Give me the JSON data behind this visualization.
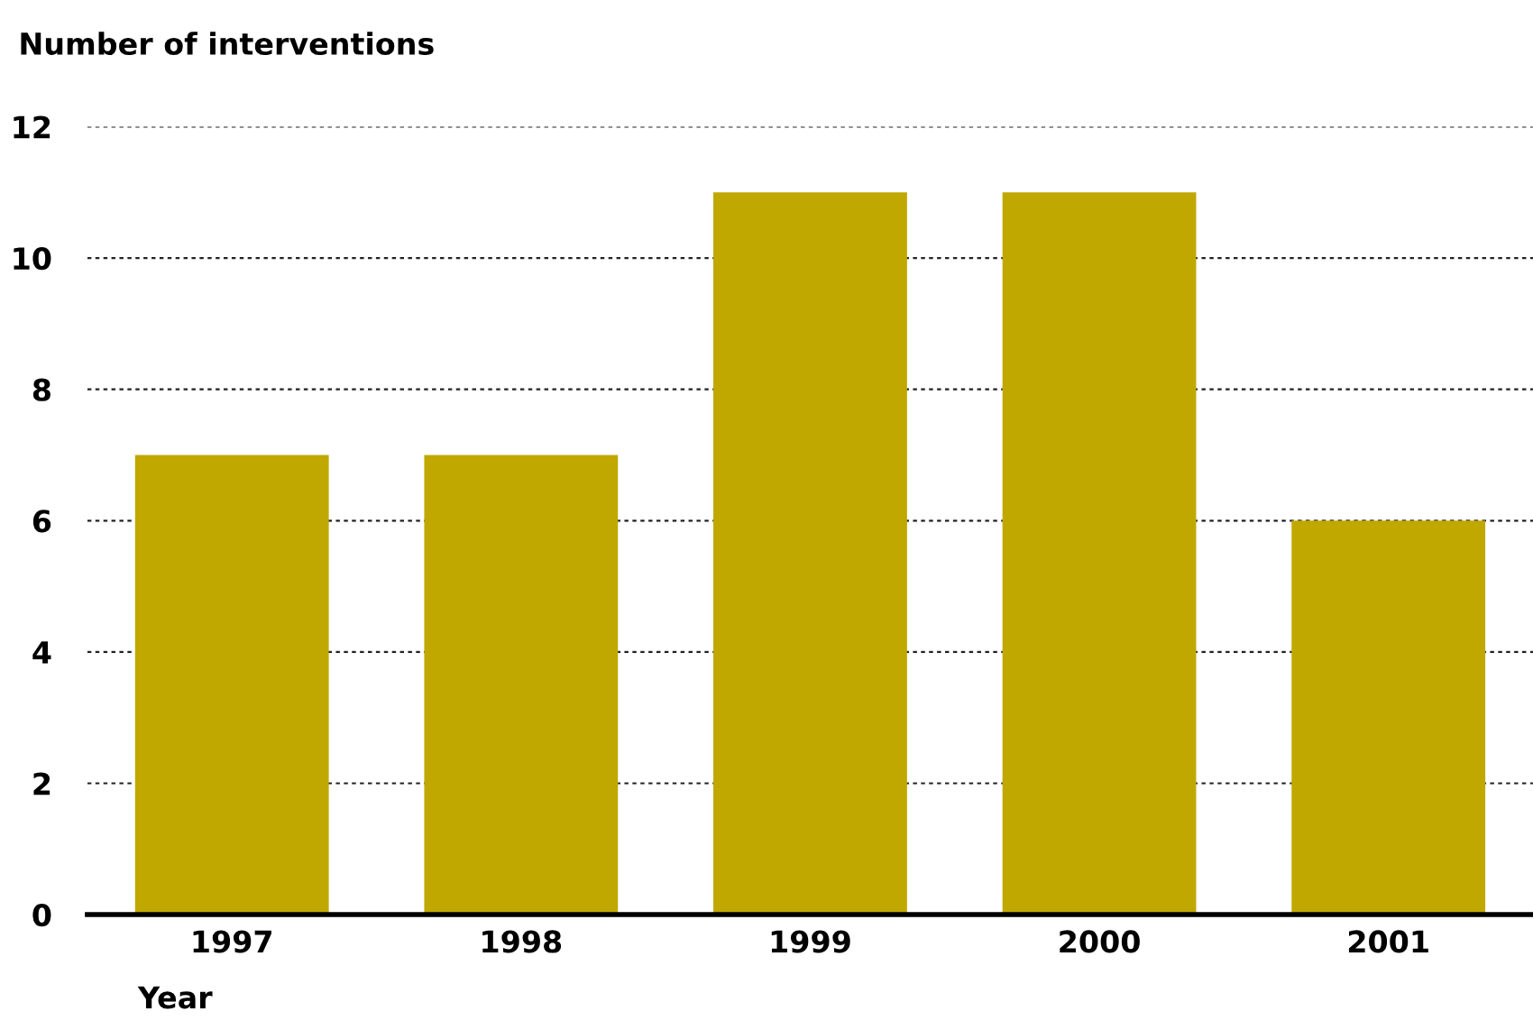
{
  "chart_data": {
    "type": "bar",
    "ylabel": "Number of interventions",
    "xlabel": "Year",
    "categories": [
      "1997",
      "1998",
      "1999",
      "2000",
      "2001"
    ],
    "values": [
      7,
      7,
      11,
      11,
      6
    ],
    "color": "#c0a800",
    "ylim": [
      0,
      12
    ],
    "yticks": [
      0,
      2,
      4,
      6,
      8,
      10,
      12
    ],
    "grid": "y",
    "legend": false
  }
}
